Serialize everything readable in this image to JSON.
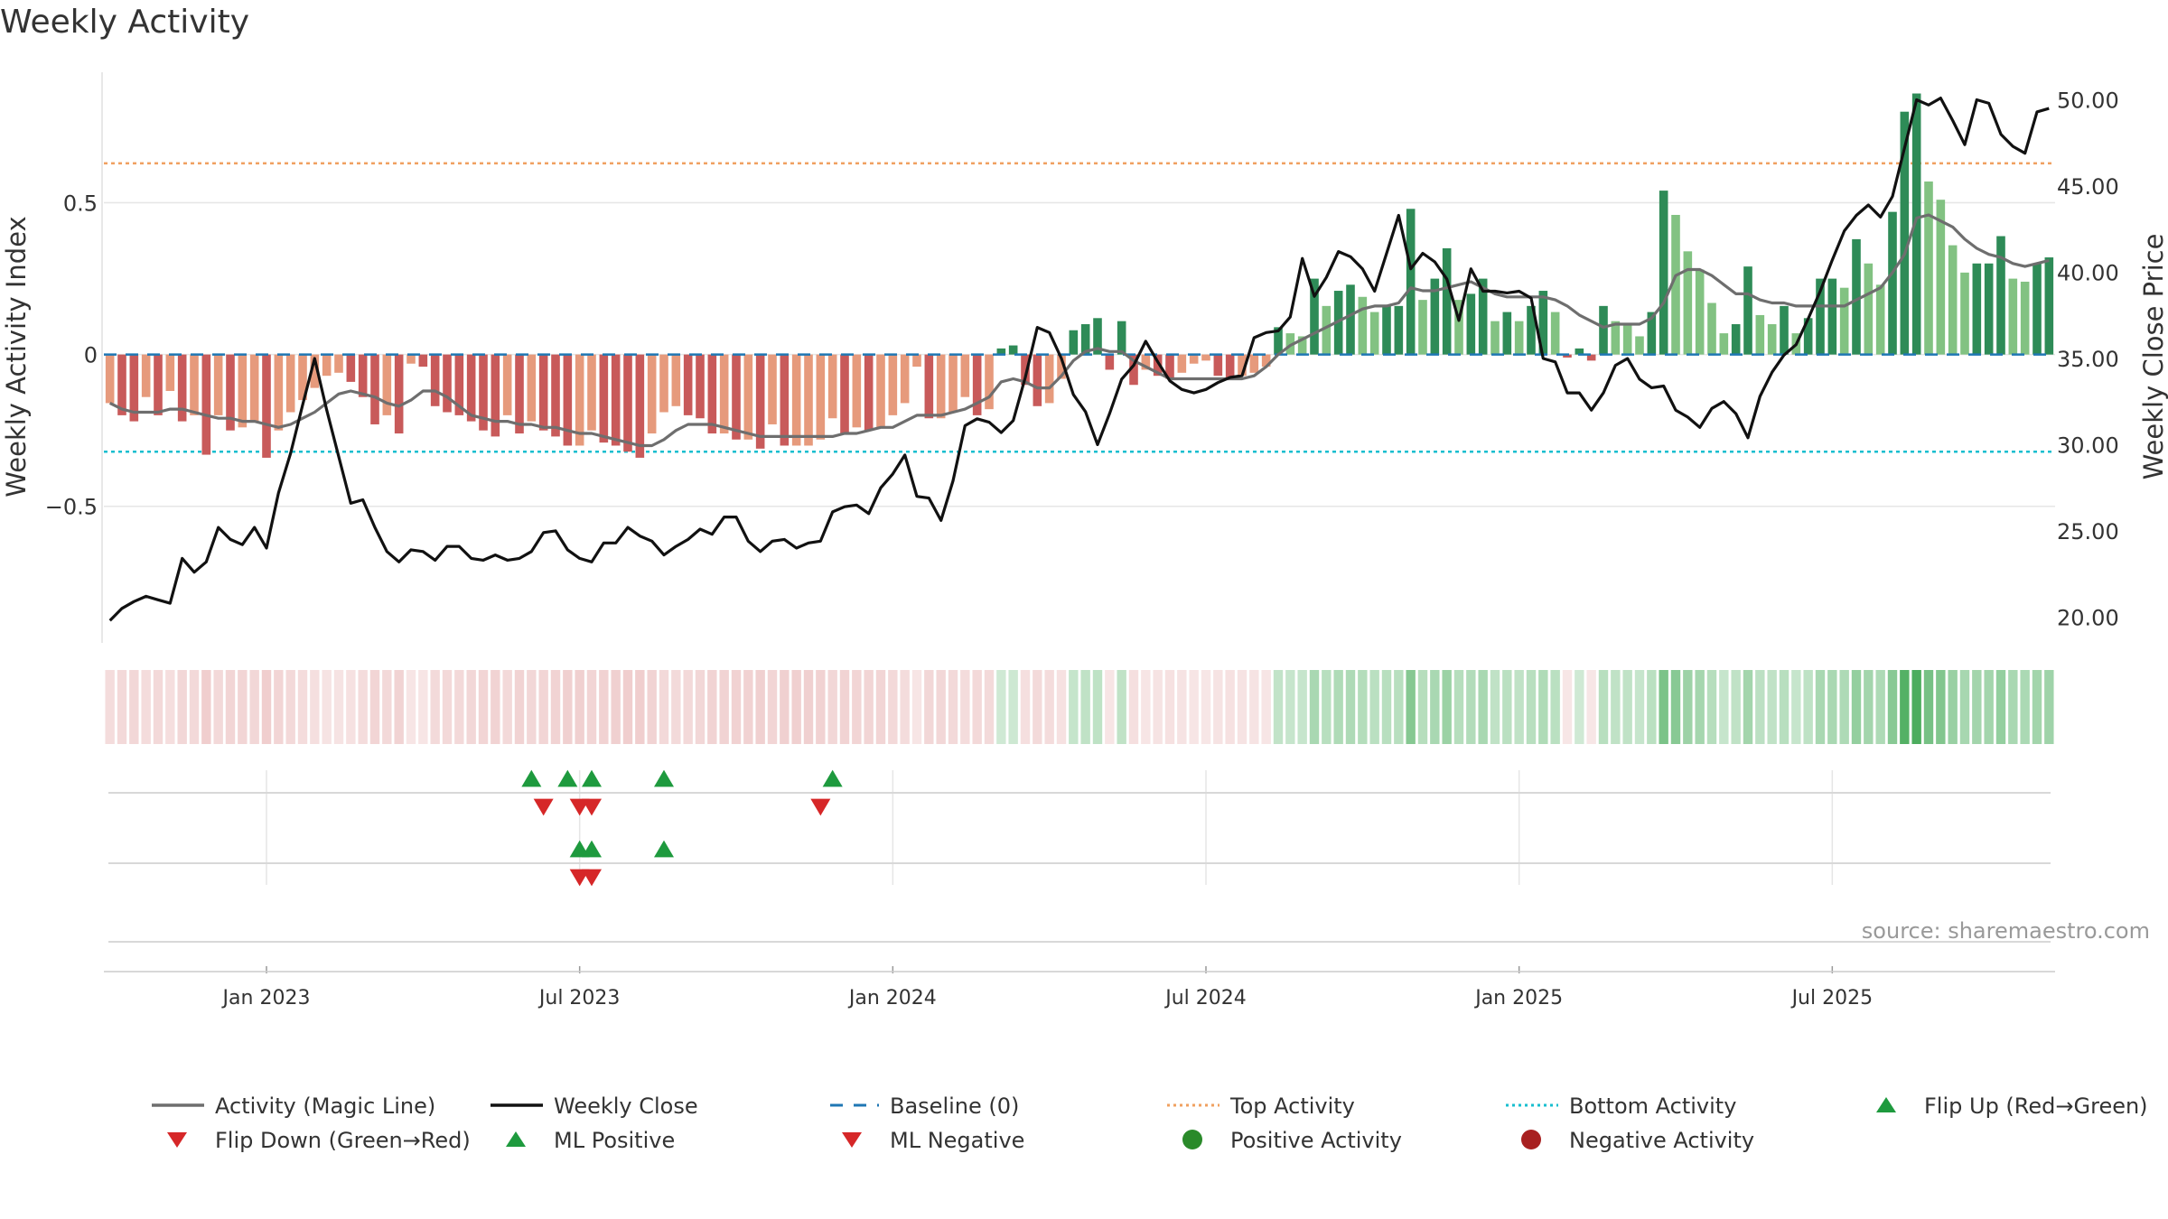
{
  "chart_data": {
    "type": "bar",
    "title": "Weekly Activity",
    "ylabel_left": "Weekly Activity Index",
    "ylabel_right": "Weekly Close Price",
    "source": "source: sharemaestro.com",
    "left_axis": {
      "min": -0.95,
      "max": 0.93,
      "ticks": [
        0.5,
        0,
        -0.5
      ],
      "tick_labels": [
        "0.5",
        "0",
        "−0.5"
      ]
    },
    "right_axis": {
      "min": 18.5,
      "max": 51.6,
      "ticks": [
        50,
        45,
        40,
        35,
        30,
        25,
        20
      ],
      "tick_labels": [
        "50.00",
        "45.00",
        "40.00",
        "35.00",
        "30.00",
        "25.00",
        "20.00"
      ]
    },
    "x_ticks": [
      "Jan 2023",
      "Jul 2023",
      "Jan 2024",
      "Jul 2024",
      "Jan 2025",
      "Jul 2025"
    ],
    "top_activity": 0.63,
    "bottom_activity": -0.32,
    "activity": [
      -0.16,
      -0.2,
      -0.22,
      -0.14,
      -0.2,
      -0.12,
      -0.22,
      -0.2,
      -0.33,
      -0.2,
      -0.25,
      -0.24,
      -0.22,
      -0.34,
      -0.25,
      -0.19,
      -0.15,
      -0.11,
      -0.07,
      -0.06,
      -0.09,
      -0.14,
      -0.23,
      -0.2,
      -0.26,
      -0.03,
      -0.04,
      -0.17,
      -0.19,
      -0.2,
      -0.22,
      -0.25,
      -0.27,
      -0.2,
      -0.26,
      -0.22,
      -0.25,
      -0.27,
      -0.3,
      -0.3,
      -0.25,
      -0.29,
      -0.3,
      -0.32,
      -0.34,
      -0.26,
      -0.19,
      -0.17,
      -0.2,
      -0.21,
      -0.26,
      -0.26,
      -0.28,
      -0.28,
      -0.31,
      -0.23,
      -0.3,
      -0.3,
      -0.3,
      -0.28,
      -0.21,
      -0.26,
      -0.24,
      -0.25,
      -0.24,
      -0.2,
      -0.16,
      -0.04,
      -0.21,
      -0.21,
      -0.19,
      -0.14,
      -0.2,
      -0.18,
      0.02,
      0.03,
      -0.1,
      -0.17,
      -0.16,
      -0.08,
      0.08,
      0.1,
      0.12,
      -0.05,
      0.11,
      -0.1,
      -0.05,
      -0.07,
      -0.08,
      -0.06,
      -0.03,
      -0.02,
      -0.07,
      -0.08,
      -0.07,
      -0.06,
      -0.04,
      0.09,
      0.07,
      0.06,
      0.25,
      0.16,
      0.21,
      0.23,
      0.19,
      0.14,
      0.16,
      0.16,
      0.48,
      0.18,
      0.25,
      0.35,
      0.18,
      0.2,
      0.25,
      0.11,
      0.14,
      0.11,
      0.16,
      0.21,
      0.14,
      -0.01,
      0.02,
      -0.02,
      0.16,
      0.11,
      0.1,
      0.06,
      0.14,
      0.54,
      0.46,
      0.34,
      0.28,
      0.17,
      0.07,
      0.1,
      0.29,
      0.13,
      0.1,
      0.16,
      0.07,
      0.12,
      0.25,
      0.25,
      0.22,
      0.38,
      0.3,
      0.23,
      0.47,
      0.8,
      0.86,
      0.57,
      0.51,
      0.36,
      0.27,
      0.3,
      0.3,
      0.39,
      0.25,
      0.24,
      0.3,
      0.32
    ],
    "magic_line": [
      -0.16,
      -0.18,
      -0.19,
      -0.19,
      -0.19,
      -0.18,
      -0.18,
      -0.19,
      -0.2,
      -0.21,
      -0.21,
      -0.22,
      -0.22,
      -0.23,
      -0.24,
      -0.23,
      -0.21,
      -0.19,
      -0.16,
      -0.13,
      -0.12,
      -0.13,
      -0.14,
      -0.16,
      -0.17,
      -0.15,
      -0.12,
      -0.12,
      -0.14,
      -0.17,
      -0.2,
      -0.21,
      -0.22,
      -0.22,
      -0.23,
      -0.23,
      -0.24,
      -0.24,
      -0.25,
      -0.26,
      -0.26,
      -0.27,
      -0.28,
      -0.29,
      -0.3,
      -0.3,
      -0.28,
      -0.25,
      -0.23,
      -0.23,
      -0.23,
      -0.24,
      -0.25,
      -0.26,
      -0.27,
      -0.27,
      -0.27,
      -0.27,
      -0.27,
      -0.27,
      -0.27,
      -0.26,
      -0.26,
      -0.25,
      -0.24,
      -0.24,
      -0.22,
      -0.2,
      -0.2,
      -0.2,
      -0.19,
      -0.18,
      -0.16,
      -0.14,
      -0.09,
      -0.08,
      -0.09,
      -0.11,
      -0.11,
      -0.07,
      -0.02,
      0.01,
      0.02,
      0.01,
      0.01,
      -0.02,
      -0.04,
      -0.06,
      -0.08,
      -0.08,
      -0.08,
      -0.08,
      -0.08,
      -0.08,
      -0.08,
      -0.07,
      -0.04,
      0.0,
      0.03,
      0.05,
      0.07,
      0.09,
      0.11,
      0.13,
      0.15,
      0.16,
      0.16,
      0.17,
      0.22,
      0.21,
      0.21,
      0.22,
      0.23,
      0.24,
      0.22,
      0.2,
      0.19,
      0.19,
      0.19,
      0.19,
      0.18,
      0.16,
      0.13,
      0.11,
      0.09,
      0.1,
      0.1,
      0.1,
      0.12,
      0.17,
      0.26,
      0.28,
      0.28,
      0.26,
      0.23,
      0.2,
      0.2,
      0.18,
      0.17,
      0.17,
      0.16,
      0.16,
      0.16,
      0.16,
      0.16,
      0.18,
      0.2,
      0.22,
      0.27,
      0.33,
      0.45,
      0.46,
      0.44,
      0.42,
      0.38,
      0.35,
      0.33,
      0.32,
      0.3,
      0.29,
      0.3,
      0.31
    ],
    "weekly_close": [
      19.8,
      20.5,
      20.9,
      21.2,
      21.0,
      20.8,
      23.4,
      22.6,
      23.2,
      25.2,
      24.5,
      24.2,
      25.2,
      24.0,
      27.2,
      29.5,
      32.3,
      35.0,
      32.0,
      29.3,
      26.6,
      26.8,
      25.2,
      23.8,
      23.2,
      23.9,
      23.8,
      23.3,
      24.1,
      24.1,
      23.4,
      23.3,
      23.6,
      23.3,
      23.4,
      23.8,
      24.9,
      25.0,
      23.9,
      23.4,
      23.2,
      24.3,
      24.3,
      25.2,
      24.7,
      24.4,
      23.6,
      24.1,
      24.5,
      25.1,
      24.8,
      25.8,
      25.8,
      24.4,
      23.8,
      24.4,
      24.5,
      24.0,
      24.3,
      24.4,
      26.1,
      26.4,
      26.5,
      26.0,
      27.5,
      28.3,
      29.4,
      27.0,
      26.9,
      25.6,
      27.9,
      31.1,
      31.5,
      31.3,
      30.7,
      31.4,
      33.9,
      36.8,
      36.5,
      35.0,
      32.9,
      31.9,
      30.0,
      31.8,
      33.8,
      34.6,
      36.0,
      34.8,
      33.7,
      33.2,
      33.0,
      33.2,
      33.6,
      33.9,
      34.0,
      36.2,
      36.5,
      36.6,
      37.4,
      40.8,
      38.6,
      39.7,
      41.2,
      40.9,
      40.2,
      38.9,
      41.1,
      43.3,
      40.2,
      41.1,
      40.6,
      39.6,
      37.2,
      40.2,
      38.9,
      38.9,
      38.8,
      38.9,
      38.5,
      35.0,
      34.8,
      33.0,
      33.0,
      32.0,
      33.0,
      34.6,
      35.0,
      33.8,
      33.3,
      33.4,
      32.0,
      31.6,
      31.0,
      32.1,
      32.5,
      31.8,
      30.4,
      32.8,
      34.2,
      35.2,
      35.8,
      37.3,
      38.9,
      40.7,
      42.4,
      43.3,
      43.9,
      43.2,
      44.4,
      47.2,
      50.0,
      49.7,
      50.1,
      48.8,
      47.4,
      50.0,
      49.8,
      48.0,
      47.3,
      46.9,
      49.3,
      49.5
    ],
    "heat_strip_note": "per-week colour strip mirrors activity sign and magnitude",
    "flip_up": [
      35,
      38,
      40,
      46,
      60
    ],
    "flip_down": [
      36,
      39,
      40,
      59
    ],
    "ml_positive": [
      39,
      40,
      46
    ],
    "ml_negative": [
      39,
      40
    ],
    "legend": [
      {
        "label": "Activity (Magic Line)",
        "kind": "line",
        "color": "#6e6e6e"
      },
      {
        "label": "Weekly Close",
        "kind": "line",
        "color": "#111111"
      },
      {
        "label": "Baseline (0)",
        "kind": "dashed",
        "color": "#1f77b4"
      },
      {
        "label": "Top Activity",
        "kind": "dotted",
        "color": "#f0a060"
      },
      {
        "label": "Bottom Activity",
        "kind": "dotted",
        "color": "#17becf"
      },
      {
        "label": "Flip Up (Red→Green)",
        "kind": "tri-up",
        "color": "#1e9a3e"
      },
      {
        "label": "Flip Down (Green→Red)",
        "kind": "tri-down",
        "color": "#d62728"
      },
      {
        "label": "ML Positive",
        "kind": "tri-up",
        "color": "#1e9a3e"
      },
      {
        "label": "ML Negative",
        "kind": "tri-down",
        "color": "#d62728"
      },
      {
        "label": "Positive Activity",
        "kind": "dot",
        "color": "#2a8a2a"
      },
      {
        "label": "Negative Activity",
        "kind": "dot",
        "color": "#a82020"
      }
    ],
    "colors": {
      "pos_dark": "#2e8b57",
      "pos_light": "#82c282",
      "neg_dark": "#c85a5a",
      "neg_light": "#e69a7c",
      "grid": "#e6e6e6"
    }
  }
}
